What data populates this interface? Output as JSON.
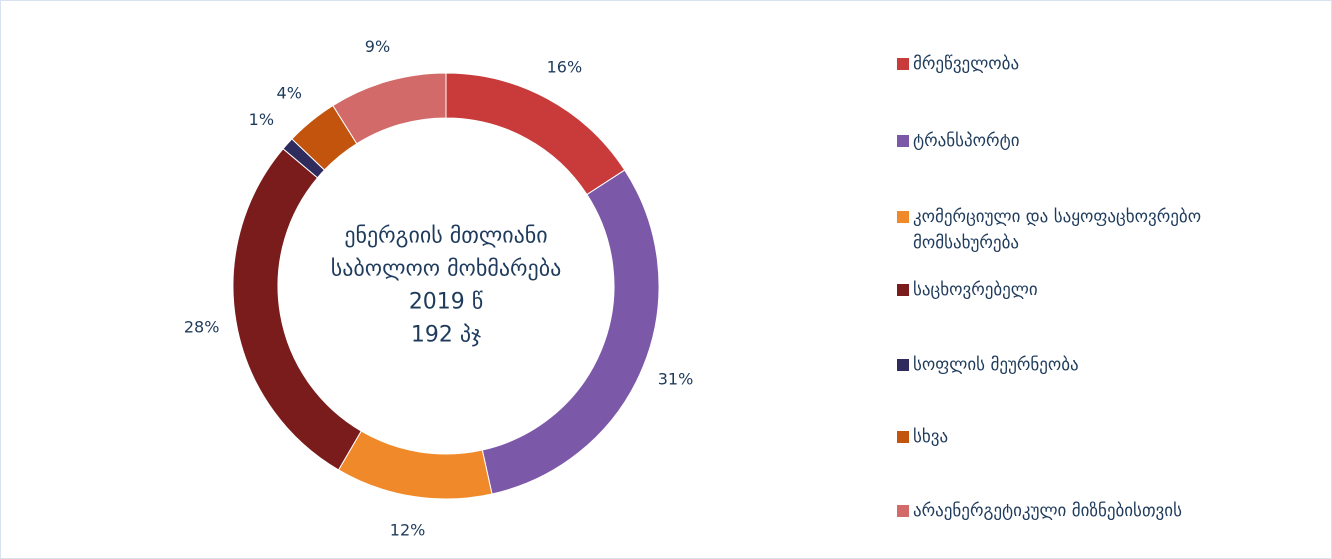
{
  "chart_data": {
    "type": "donut",
    "center_text": [
      "ენერგიის მთლიანი",
      "საბოლოო მოხმარება",
      "2019 წ",
      "192 პჯ"
    ],
    "categories": [
      "მრეწველობა",
      "ტრანსპორტი",
      "კომერციული და საყოფაცხოვრებო მომსახურება",
      "საცხოვრებელი",
      "სოფლის მეურნეობა",
      "სხვა",
      "არაენერგეტიკული მიზნებისთვის"
    ],
    "values": [
      16,
      31,
      12,
      28,
      1,
      4,
      9
    ],
    "value_labels": [
      "16%",
      "31%",
      "12%",
      "28%",
      "1%",
      "4%",
      "9%"
    ],
    "colors": [
      "#c93a3a",
      "#7b58a8",
      "#f0892a",
      "#7a1c1c",
      "#2f2b5c",
      "#c2540e",
      "#d26a6a"
    ],
    "legend": "right"
  }
}
